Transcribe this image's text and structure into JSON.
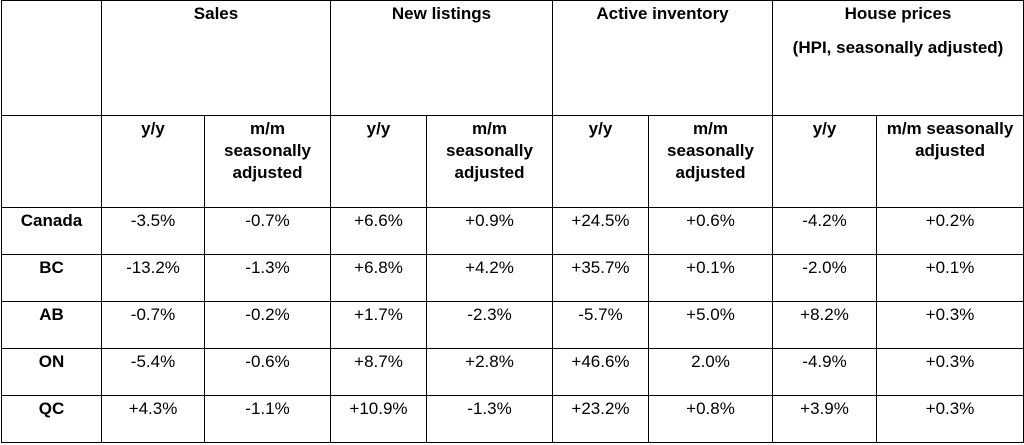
{
  "groups": [
    {
      "title": "Sales",
      "subtitle": ""
    },
    {
      "title": "New listings",
      "subtitle": ""
    },
    {
      "title": "Active inventory",
      "subtitle": ""
    },
    {
      "title": "House prices",
      "subtitle": "(HPI, seasonally adjusted)"
    }
  ],
  "subheaders": {
    "yy": "y/y",
    "mm": "m/m seasonally adjusted"
  },
  "rows": [
    {
      "region": "Canada",
      "values": [
        "-3.5%",
        "-0.7%",
        "+6.6%",
        "+0.9%",
        "+24.5%",
        "+0.6%",
        "-4.2%",
        "+0.2%"
      ]
    },
    {
      "region": "BC",
      "values": [
        "-13.2%",
        "-1.3%",
        "+6.8%",
        "+4.2%",
        "+35.7%",
        "+0.1%",
        "-2.0%",
        "+0.1%"
      ]
    },
    {
      "region": "AB",
      "values": [
        "-0.7%",
        "-0.2%",
        "+1.7%",
        "-2.3%",
        "-5.7%",
        "+5.0%",
        "+8.2%",
        "+0.3%"
      ]
    },
    {
      "region": "ON",
      "values": [
        "-5.4%",
        "-0.6%",
        "+8.7%",
        "+2.8%",
        "+46.6%",
        "2.0%",
        "-4.9%",
        "+0.3%"
      ]
    },
    {
      "region": "QC",
      "values": [
        "+4.3%",
        "-1.1%",
        "+10.9%",
        "-1.3%",
        "+23.2%",
        "+0.8%",
        "+3.9%",
        "+0.3%"
      ]
    }
  ]
}
